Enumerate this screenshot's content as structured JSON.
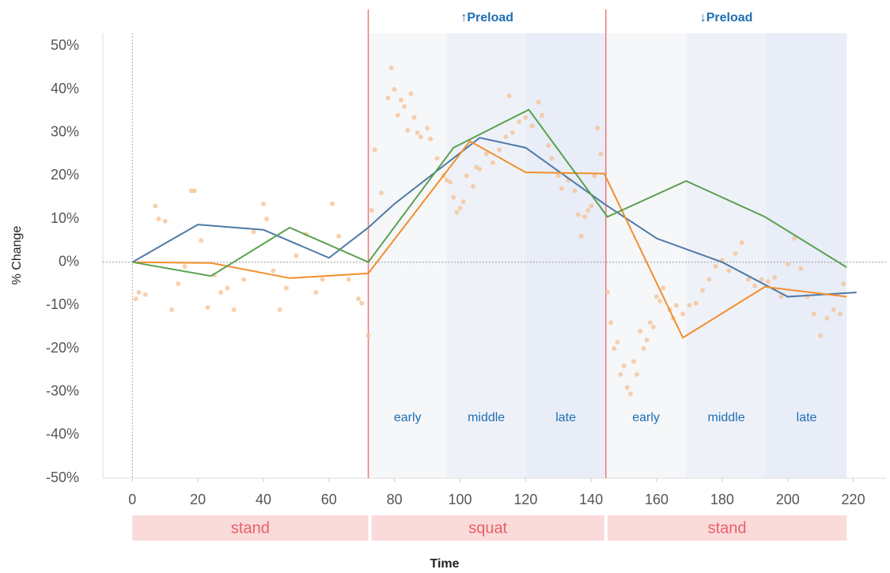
{
  "chart_data": {
    "type": "line",
    "x_label": "Time",
    "y_label": "% Change",
    "xlim": [
      -9,
      230
    ],
    "ylim": [
      -50,
      53
    ],
    "xticks": [
      0,
      20,
      40,
      60,
      80,
      100,
      120,
      140,
      160,
      180,
      200,
      220
    ],
    "yticks": [
      {
        "value": -50,
        "label": "-50%"
      },
      {
        "value": -40,
        "label": "-40%"
      },
      {
        "value": -30,
        "label": "-30%"
      },
      {
        "value": -20,
        "label": "-20%"
      },
      {
        "value": -10,
        "label": "-10%"
      },
      {
        "value": 0,
        "label": "0%"
      },
      {
        "value": 10,
        "label": "10%"
      },
      {
        "value": 20,
        "label": "20%"
      },
      {
        "value": 30,
        "label": "30%"
      },
      {
        "value": 40,
        "label": "40%"
      },
      {
        "value": 50,
        "label": "50%"
      }
    ],
    "markers": [
      72,
      144.5
    ],
    "bands": [
      {
        "label": "early",
        "start": 72,
        "end": 96,
        "color": "#f6f7f9"
      },
      {
        "label": "middle",
        "start": 96,
        "end": 120,
        "color": "#eef2f8"
      },
      {
        "label": "late",
        "start": 120,
        "end": 144.5,
        "color": "#e8edf7"
      },
      {
        "label": "early",
        "start": 144.5,
        "end": 169,
        "color": "#f6f7f9"
      },
      {
        "label": "middle",
        "start": 169,
        "end": 193.5,
        "color": "#eef2f8"
      },
      {
        "label": "late",
        "start": 193.5,
        "end": 218,
        "color": "#e8edf7"
      }
    ],
    "preload_labels": [
      {
        "label": "↑Preload",
        "start": 72,
        "end": 144.5
      },
      {
        "label": "↓Preload",
        "start": 144.5,
        "end": 218
      }
    ],
    "segments": [
      {
        "label": "stand",
        "start": 0,
        "end": 72
      },
      {
        "label": "squat",
        "start": 73,
        "end": 144
      },
      {
        "label": "stand",
        "start": 145,
        "end": 218
      }
    ],
    "scatter": {
      "color": "#f5c093",
      "x": [
        1,
        2,
        4,
        7,
        8,
        10,
        12,
        14,
        16,
        18,
        19,
        21,
        23,
        25,
        27,
        29,
        31,
        34,
        37,
        40,
        41,
        43,
        45,
        47,
        50,
        53,
        56,
        58,
        61,
        63,
        66,
        69,
        70,
        72,
        73,
        74,
        76,
        78,
        79,
        80,
        81,
        82,
        83,
        84,
        85,
        86,
        87,
        88,
        90,
        91,
        93,
        95,
        96,
        97,
        98,
        99,
        100,
        101,
        102,
        104,
        105,
        106,
        108,
        110,
        112,
        114,
        115,
        116,
        118,
        120,
        122,
        124,
        125,
        127,
        128,
        130,
        131,
        133,
        135,
        136,
        137,
        138,
        139,
        140,
        141,
        142,
        143,
        145,
        146,
        147,
        148,
        149,
        150,
        151,
        152,
        153,
        154,
        155,
        156,
        157,
        158,
        159,
        160,
        161,
        162,
        164,
        165,
        166,
        168,
        170,
        172,
        174,
        176,
        178,
        180,
        182,
        184,
        186,
        188,
        190,
        192,
        194,
        196,
        198,
        200,
        202,
        204,
        206,
        208,
        210,
        212,
        214,
        216,
        217
      ],
      "values": [
        -8.5,
        -7,
        -7.5,
        13,
        10,
        9.5,
        -11,
        -5,
        -1,
        16.5,
        16.5,
        5,
        -10.5,
        -3,
        -7,
        -6,
        -11,
        -4,
        7,
        13.5,
        10,
        -2,
        -11,
        -6,
        1.5,
        6.5,
        -7,
        -4,
        13.5,
        6,
        -4,
        -8.5,
        -9.5,
        -17,
        12,
        26,
        16,
        38,
        45,
        40,
        34,
        37.5,
        36,
        30.5,
        39,
        33.5,
        30,
        29,
        31,
        28.5,
        24,
        20,
        19,
        18.5,
        15,
        11.5,
        12.5,
        14,
        20,
        17.5,
        22,
        21.5,
        25,
        23,
        26,
        29,
        38.5,
        30,
        32.5,
        33.5,
        31.5,
        37,
        34,
        27,
        24,
        20,
        17,
        19,
        16.5,
        11,
        6,
        10.5,
        12,
        13,
        20,
        31,
        25,
        -7,
        -14,
        -20,
        -18.5,
        -26,
        -24,
        -29,
        -30.5,
        -23,
        -26,
        -16,
        -20,
        -18,
        -14,
        -15,
        -8,
        -9,
        -6,
        -11,
        -13,
        -10,
        -12,
        -10,
        -9.5,
        -6.5,
        -4,
        -1,
        0.5,
        -2,
        2,
        4.5,
        -4,
        -5.5,
        -4,
        -4.5,
        -3.5,
        -8,
        -0.5,
        5.5,
        -1.5,
        -8,
        -12,
        -17,
        -13,
        -11,
        -12,
        -5
      ]
    },
    "series": [
      {
        "color": "#4e79a7",
        "x": [
          0,
          20,
          40,
          60,
          72,
          80,
          106,
          120,
          144,
          160,
          180,
          200,
          221
        ],
        "values": [
          0,
          8.7,
          7.5,
          1,
          8,
          13.5,
          28.8,
          26.5,
          13.5,
          5.5,
          0,
          -8,
          -7
        ]
      },
      {
        "color": "#f28e2b",
        "x": [
          0,
          24,
          48,
          72,
          103,
          120,
          144,
          168,
          193,
          218
        ],
        "values": [
          0,
          -0.2,
          -3.7,
          -2.6,
          28,
          20.8,
          20.5,
          -17.5,
          -5.7,
          -8
        ]
      },
      {
        "color": "#59a14f",
        "x": [
          0,
          24,
          48,
          72,
          98,
          121,
          145,
          169,
          193,
          218
        ],
        "values": [
          0,
          -3.2,
          8,
          0,
          26.5,
          35.3,
          10.5,
          18.8,
          10.5,
          -1.2
        ]
      }
    ]
  }
}
